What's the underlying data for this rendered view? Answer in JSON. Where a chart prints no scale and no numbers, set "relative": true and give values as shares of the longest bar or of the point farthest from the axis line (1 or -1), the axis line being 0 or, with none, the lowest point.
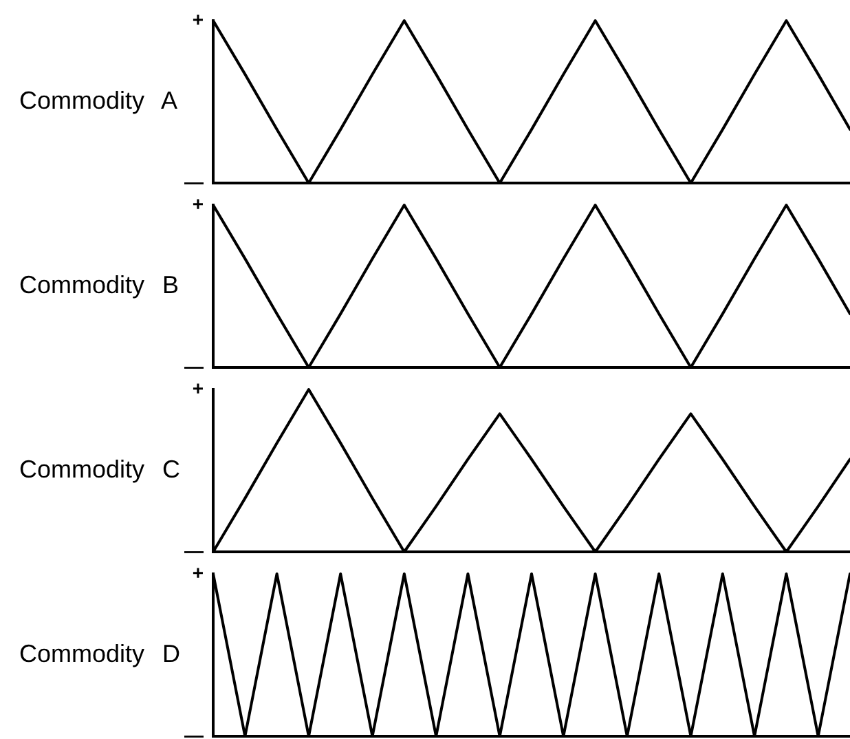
{
  "chart_data": [
    {
      "type": "line",
      "ylabel": "Commodity A",
      "relative": true,
      "categories": [
        null,
        null,
        null,
        null,
        null,
        null,
        null,
        null,
        null,
        null,
        null,
        null,
        null,
        null,
        null,
        null,
        null,
        null,
        null,
        null,
        null
      ],
      "series": [
        {
          "color": "#000000",
          "values": [
            1,
            0.67,
            0.33,
            0,
            0.33,
            0.67,
            1,
            0.67,
            0.33,
            0,
            0.33,
            0.67,
            1,
            0.67,
            0.33,
            0,
            0.33,
            0.67,
            1,
            0.67,
            0.33
          ]
        }
      ],
      "annotations": [
        "+",
        "—"
      ],
      "tick_labels": false
    },
    {
      "type": "line",
      "ylabel": "Commodity B",
      "relative": true,
      "categories": [
        null,
        null,
        null,
        null,
        null,
        null,
        null,
        null,
        null,
        null,
        null,
        null,
        null,
        null,
        null,
        null,
        null,
        null,
        null,
        null,
        null
      ],
      "series": [
        {
          "color": "#000000",
          "values": [
            1,
            0.67,
            0.33,
            0,
            0.33,
            0.67,
            1,
            0.67,
            0.33,
            0,
            0.33,
            0.67,
            1,
            0.67,
            0.33,
            0,
            0.33,
            0.67,
            1,
            0.67,
            0.33
          ]
        }
      ],
      "annotations": [
        "+",
        "—"
      ],
      "tick_labels": false
    },
    {
      "type": "line",
      "ylabel": "Commodity C",
      "relative": true,
      "categories": [
        null,
        null,
        null,
        null,
        null,
        null,
        null,
        null,
        null,
        null,
        null,
        null,
        null,
        null,
        null,
        null,
        null,
        null,
        null,
        null,
        null
      ],
      "series": [
        {
          "color": "#000000",
          "values": [
            0,
            0.33,
            0.67,
            1,
            0.67,
            0.33,
            0,
            0.28,
            0.57,
            0.85,
            0.57,
            0.28,
            0,
            0.28,
            0.57,
            0.85,
            0.57,
            0.28,
            0,
            0.28,
            0.57
          ]
        }
      ],
      "annotations": [
        "+",
        "—"
      ],
      "tick_labels": false
    },
    {
      "type": "line",
      "ylabel": "Commodity D",
      "relative": true,
      "categories": [
        null,
        null,
        null,
        null,
        null,
        null,
        null,
        null,
        null,
        null,
        null,
        null,
        null,
        null,
        null,
        null,
        null,
        null,
        null,
        null,
        null
      ],
      "series": [
        {
          "color": "#000000",
          "values": [
            1,
            0,
            1,
            0,
            1,
            0,
            1,
            0,
            1,
            0,
            1,
            0,
            1,
            0,
            1,
            0,
            1,
            0,
            1,
            0,
            1
          ]
        }
      ],
      "annotations": [
        "+",
        "—"
      ],
      "tick_labels": false
    }
  ]
}
